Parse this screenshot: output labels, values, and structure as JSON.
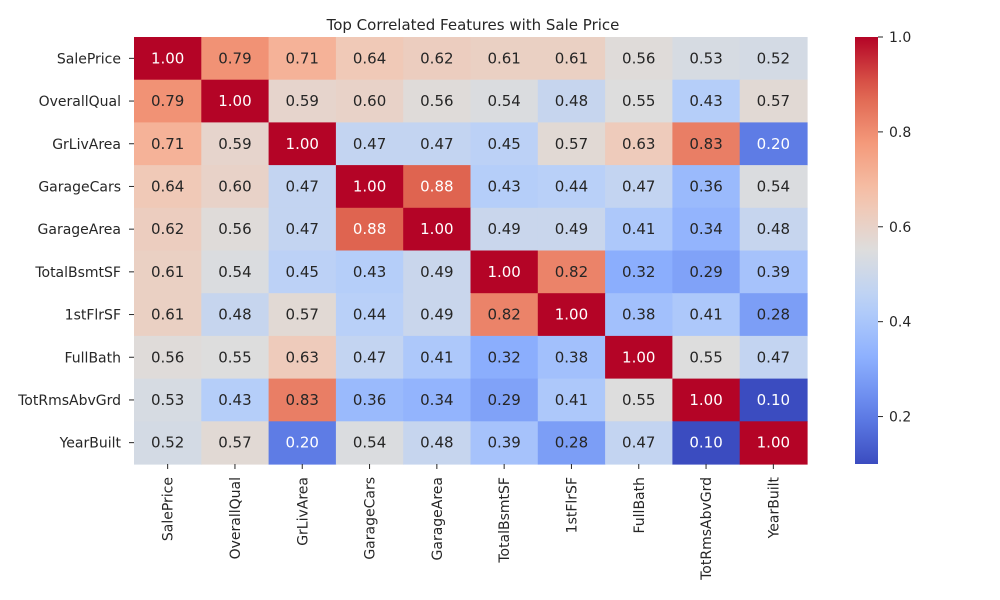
{
  "chart_data": {
    "type": "heatmap",
    "title": "Top Correlated Features with Sale Price",
    "xlabel": "",
    "ylabel": "",
    "colormap": "coolwarm",
    "vmin": 0.1,
    "vmax": 1.0,
    "rows": [
      "SalePrice",
      "OverallQual",
      "GrLivArea",
      "GarageCars",
      "GarageArea",
      "TotalBsmtSF",
      "1stFlrSF",
      "FullBath",
      "TotRmsAbvGrd",
      "YearBuilt"
    ],
    "columns": [
      "SalePrice",
      "OverallQual",
      "GrLivArea",
      "GarageCars",
      "GarageArea",
      "TotalBsmtSF",
      "1stFlrSF",
      "FullBath",
      "TotRmsAbvGrd",
      "YearBuilt"
    ],
    "values": [
      [
        1.0,
        0.79,
        0.71,
        0.64,
        0.62,
        0.61,
        0.61,
        0.56,
        0.53,
        0.52
      ],
      [
        0.79,
        1.0,
        0.59,
        0.6,
        0.56,
        0.54,
        0.48,
        0.55,
        0.43,
        0.57
      ],
      [
        0.71,
        0.59,
        1.0,
        0.47,
        0.47,
        0.45,
        0.57,
        0.63,
        0.83,
        0.2
      ],
      [
        0.64,
        0.6,
        0.47,
        1.0,
        0.88,
        0.43,
        0.44,
        0.47,
        0.36,
        0.54
      ],
      [
        0.62,
        0.56,
        0.47,
        0.88,
        1.0,
        0.49,
        0.49,
        0.41,
        0.34,
        0.48
      ],
      [
        0.61,
        0.54,
        0.45,
        0.43,
        0.49,
        1.0,
        0.82,
        0.32,
        0.29,
        0.39
      ],
      [
        0.61,
        0.48,
        0.57,
        0.44,
        0.49,
        0.82,
        1.0,
        0.38,
        0.41,
        0.28
      ],
      [
        0.56,
        0.55,
        0.63,
        0.47,
        0.41,
        0.32,
        0.38,
        1.0,
        0.55,
        0.47
      ],
      [
        0.53,
        0.43,
        0.83,
        0.36,
        0.34,
        0.29,
        0.41,
        0.55,
        1.0,
        0.1
      ],
      [
        0.52,
        0.57,
        0.2,
        0.54,
        0.48,
        0.39,
        0.28,
        0.47,
        0.1,
        1.0
      ]
    ],
    "value_format": "2 decimals",
    "colorbar": {
      "ticks": [
        0.2,
        0.4,
        0.6,
        0.8,
        1.0
      ],
      "tick_labels": [
        "0.2",
        "0.4",
        "0.6",
        "0.8",
        "1.0"
      ]
    }
  }
}
